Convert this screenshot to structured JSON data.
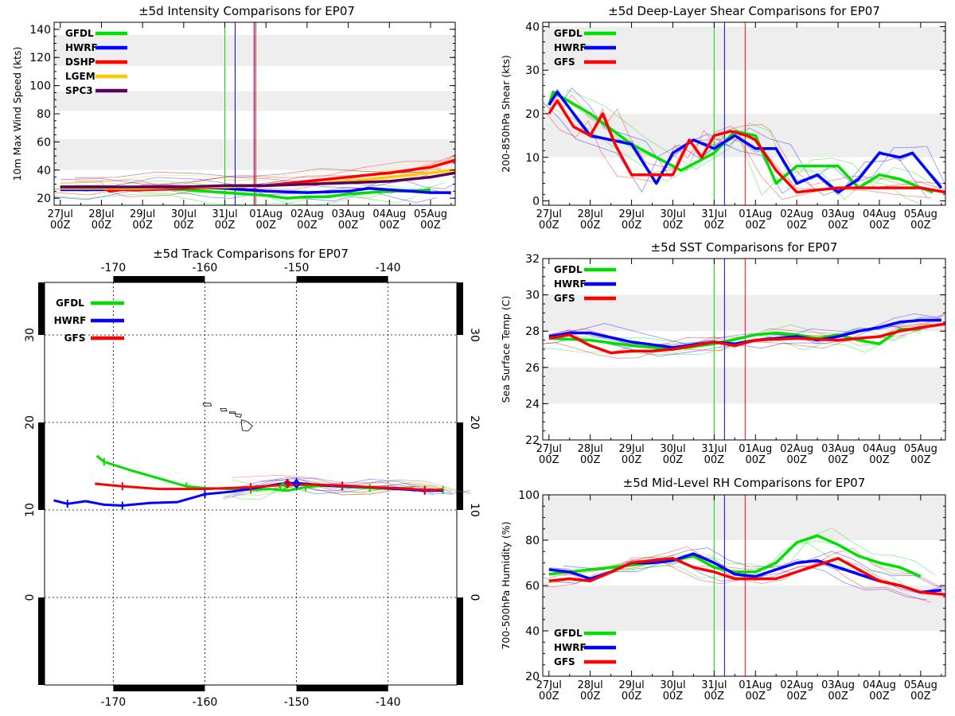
{
  "colors": {
    "GFDL": "#00e000",
    "HWRF": "#0000ff",
    "DSHP": "#ff0000",
    "LGEM": "#ffc800",
    "SPC3": "#5a0060",
    "GFS": "#ff0000",
    "band": "#eeeeee"
  },
  "time_axis": {
    "ticks": [
      {
        "day": "27Jul",
        "hour": "00Z"
      },
      {
        "day": "28Jul",
        "hour": "00Z"
      },
      {
        "day": "29Jul",
        "hour": "00Z"
      },
      {
        "day": "30Jul",
        "hour": "00Z"
      },
      {
        "day": "31Jul",
        "hour": "00Z"
      },
      {
        "day": "01Aug",
        "hour": "00Z"
      },
      {
        "day": "02Aug",
        "hour": "00Z"
      },
      {
        "day": "03Aug",
        "hour": "00Z"
      },
      {
        "day": "04Aug",
        "hour": "00Z"
      },
      {
        "day": "05Aug",
        "hour": "00Z"
      }
    ],
    "xlim_days": [
      -0.15,
      9.6
    ],
    "markers": [
      {
        "model": "GFDL",
        "t": 4.0
      },
      {
        "model": "HWRF",
        "t": 4.25
      },
      {
        "model": "GFS",
        "t": 4.75
      }
    ]
  },
  "chart_data": [
    {
      "id": "intensity",
      "type": "line",
      "title": "±5d Intensity Comparisons for EP07",
      "ylabel": "10m Max Wind Speed (kts)",
      "ylim": [
        15,
        145
      ],
      "yticks": [
        20,
        40,
        60,
        80,
        100,
        120,
        140
      ],
      "bands": [
        [
          40,
          62
        ],
        [
          82,
          96
        ],
        [
          114,
          136
        ]
      ],
      "legend": [
        "GFDL",
        "HWRF",
        "DSHP",
        "LGEM",
        "SPC3"
      ],
      "series": [
        {
          "name": "GFDL",
          "x": [
            0,
            1,
            2,
            3,
            4,
            5,
            5.5,
            6,
            6.5,
            7,
            7.5,
            8,
            8.5,
            9
          ],
          "y": [
            28,
            28,
            27,
            26,
            24,
            22,
            20,
            21,
            21,
            23,
            24,
            25,
            25,
            26
          ]
        },
        {
          "name": "HWRF",
          "x": [
            0,
            1,
            2,
            3,
            4,
            4.5,
            5,
            6,
            7,
            7.5,
            8,
            8.5,
            9,
            9.5
          ],
          "y": [
            26,
            26,
            28,
            28,
            27,
            26,
            25,
            24,
            25,
            27,
            26,
            25,
            24,
            24
          ]
        },
        {
          "name": "DSHP",
          "x": [
            0,
            1,
            1.2,
            1.5,
            2,
            3,
            4,
            5,
            6,
            7,
            8,
            9,
            9.6
          ],
          "y": [
            28,
            28,
            25,
            26,
            26,
            27,
            28,
            29,
            32,
            35,
            38,
            42,
            47
          ]
        },
        {
          "name": "LGEM",
          "x": [
            0,
            1,
            2,
            3,
            4,
            5,
            6,
            7,
            8,
            9,
            9.6
          ],
          "y": [
            27,
            27,
            27,
            28,
            28,
            29,
            30,
            32,
            35,
            38,
            40
          ]
        },
        {
          "name": "SPC3",
          "x": [
            0,
            1,
            2,
            3,
            4,
            5,
            6,
            7,
            8,
            9,
            9.6
          ],
          "y": [
            28,
            28,
            28,
            28,
            29,
            29,
            30,
            31,
            32,
            35,
            38
          ]
        }
      ]
    },
    {
      "id": "shear",
      "type": "line",
      "title": "±5d Deep-Layer Shear Comparisons for EP07",
      "ylabel": "200-850hPa Shear (kts)",
      "ylim": [
        -1,
        41
      ],
      "yticks": [
        0,
        10,
        20,
        30,
        40
      ],
      "bands": [
        [
          10,
          20
        ],
        [
          30,
          40
        ]
      ],
      "legend": [
        "GFDL",
        "HWRF",
        "GFS"
      ],
      "series": [
        {
          "name": "GFDL",
          "x": [
            0,
            0.1,
            1,
            2,
            3.2,
            4,
            4.5,
            5,
            5.5,
            6,
            6.5,
            7,
            7.5,
            8,
            8.5,
            9,
            9.3
          ],
          "y": [
            22,
            25,
            20,
            13,
            7,
            11,
            16,
            15,
            4,
            8,
            8,
            8,
            3,
            6,
            5,
            3,
            2
          ]
        },
        {
          "name": "HWRF",
          "x": [
            0,
            0.2,
            0.6,
            1,
            2,
            2.6,
            3,
            3.5,
            4,
            4.5,
            5,
            5.5,
            6,
            6.5,
            7,
            7.5,
            8,
            8.5,
            8.8,
            9.5
          ],
          "y": [
            22,
            25,
            20,
            15,
            13,
            4,
            11,
            14,
            12,
            15,
            12,
            12,
            4,
            6,
            2,
            5,
            11,
            10,
            11,
            3
          ]
        },
        {
          "name": "GFS",
          "x": [
            0,
            0.2,
            0.6,
            1,
            1.3,
            1.6,
            2,
            2.4,
            3,
            3.4,
            3.7,
            4,
            4.4,
            4.8,
            5,
            5.5,
            6,
            7,
            8,
            9,
            9.6
          ],
          "y": [
            20,
            23,
            17,
            15,
            20,
            13,
            6,
            6,
            6,
            14,
            10,
            15,
            16,
            15,
            14,
            7,
            2,
            3,
            3,
            3,
            2
          ]
        }
      ]
    },
    {
      "id": "sst",
      "type": "line",
      "title": "±5d SST Comparisons for EP07",
      "ylabel": "Sea Surface Temp (C)",
      "ylim": [
        22,
        32
      ],
      "yticks": [
        22,
        24,
        26,
        28,
        30,
        32
      ],
      "bands": [
        [
          24,
          26
        ],
        [
          28,
          30
        ]
      ],
      "legend": [
        "GFDL",
        "HWRF",
        "GFS"
      ],
      "series": [
        {
          "name": "GFDL",
          "x": [
            0,
            1,
            2,
            3,
            4,
            5,
            5.5,
            6,
            6.5,
            7,
            7.5,
            8,
            8.5,
            9
          ],
          "y": [
            27.6,
            27.5,
            27.2,
            27.0,
            27.3,
            27.8,
            27.9,
            27.8,
            27.6,
            27.8,
            27.5,
            27.3,
            28.1,
            28.1
          ]
        },
        {
          "name": "HWRF",
          "x": [
            0,
            0.5,
            1,
            2,
            3,
            4,
            4.5,
            5,
            5.5,
            6,
            6.5,
            7,
            7.5,
            8,
            8.5,
            9,
            9.5
          ],
          "y": [
            27.7,
            27.9,
            27.9,
            27.4,
            27.1,
            27.4,
            27.3,
            27.5,
            27.6,
            27.7,
            27.5,
            27.7,
            28.0,
            28.2,
            28.5,
            28.6,
            28.6
          ]
        },
        {
          "name": "GFS",
          "x": [
            0,
            0.5,
            1,
            1.5,
            2,
            2.5,
            3,
            3.5,
            4,
            4.5,
            5,
            6,
            7,
            7.5,
            8,
            8.5,
            9,
            9.6
          ],
          "y": [
            27.6,
            27.8,
            27.2,
            26.8,
            26.9,
            26.9,
            27.0,
            27.2,
            27.4,
            27.2,
            27.5,
            27.6,
            27.5,
            27.6,
            27.7,
            28.0,
            28.2,
            28.4
          ]
        }
      ]
    },
    {
      "id": "rh",
      "type": "line",
      "title": "±5d Mid-Level RH Comparisons for EP07",
      "ylabel": "700-500hPa Humidity (%)",
      "ylim": [
        20,
        100
      ],
      "yticks": [
        20,
        40,
        60,
        80,
        100
      ],
      "bands": [
        [
          40,
          60
        ],
        [
          80,
          100
        ]
      ],
      "legend": [
        "GFDL",
        "HWRF",
        "GFS"
      ],
      "series": [
        {
          "name": "GFDL",
          "x": [
            0,
            1,
            2,
            3,
            3.5,
            4,
            4.5,
            5,
            5.5,
            6,
            6.5,
            7,
            7.5,
            8,
            8.5,
            9
          ],
          "y": [
            65,
            67,
            69,
            71,
            73,
            68,
            66,
            66,
            70,
            79,
            82,
            78,
            73,
            70,
            68,
            64
          ]
        },
        {
          "name": "HWRF",
          "x": [
            0,
            0.5,
            1,
            1.5,
            2,
            2.5,
            3,
            3.5,
            4,
            4.5,
            5,
            5.5,
            6,
            6.5,
            7,
            7.5,
            8,
            8.5,
            9,
            9.5
          ],
          "y": [
            67,
            66,
            63,
            66,
            70,
            70,
            71,
            74,
            70,
            65,
            64,
            67,
            70,
            71,
            68,
            65,
            62,
            60,
            57,
            58
          ]
        },
        {
          "name": "GFS",
          "x": [
            0,
            0.5,
            1,
            1.5,
            2,
            2.5,
            3,
            3.5,
            4,
            4.5,
            5,
            5.5,
            6,
            6.5,
            7,
            7.5,
            8,
            8.5,
            9,
            9.6
          ],
          "y": [
            62,
            63,
            62,
            66,
            70,
            71,
            72,
            68,
            66,
            63,
            63,
            63,
            66,
            69,
            72,
            67,
            62,
            60,
            57,
            56
          ]
        }
      ]
    },
    {
      "id": "track",
      "type": "scatter",
      "title": "±5d Track Comparisons for EP07",
      "xlim": [
        -177.5,
        -132.5
      ],
      "ylim": [
        -10,
        36
      ],
      "xticks": [
        -170,
        -160,
        -150,
        -140
      ],
      "yticks": [
        0,
        10,
        20,
        30
      ],
      "legend": [
        "GFDL",
        "HWRF",
        "GFS"
      ],
      "series": [
        {
          "name": "GFDL",
          "lon": [
            -171.8,
            -171,
            -168,
            -165,
            -162,
            -160,
            -157,
            -155,
            -153,
            -151,
            -149,
            -147,
            -145,
            -142,
            -139,
            -136,
            -134
          ],
          "lat": [
            16.2,
            15.5,
            14.5,
            13.6,
            12.7,
            12.5,
            12.4,
            12.3,
            12.4,
            12.2,
            12.6,
            12.8,
            12.7,
            12.5,
            12.4,
            12.3,
            12.3
          ]
        },
        {
          "name": "HWRF",
          "lon": [
            -176.5,
            -175,
            -173,
            -171,
            -169,
            -166,
            -163,
            -160,
            -157,
            -154,
            -151,
            -149,
            -147,
            -145,
            -142,
            -139,
            -136,
            -134
          ],
          "lat": [
            11.1,
            10.7,
            11.0,
            10.6,
            10.5,
            10.8,
            10.9,
            11.8,
            12.1,
            12.6,
            13.1,
            13.0,
            12.8,
            12.7,
            12.6,
            12.4,
            12.2,
            12.2
          ]
        },
        {
          "name": "GFS",
          "lon": [
            -172,
            -169,
            -165,
            -160,
            -155,
            -151,
            -148,
            -145,
            -142,
            -139,
            -136,
            -134
          ],
          "lat": [
            13.0,
            12.7,
            12.4,
            12.4,
            12.6,
            12.9,
            12.9,
            12.8,
            12.6,
            12.5,
            12.3,
            12.3
          ]
        }
      ]
    }
  ]
}
